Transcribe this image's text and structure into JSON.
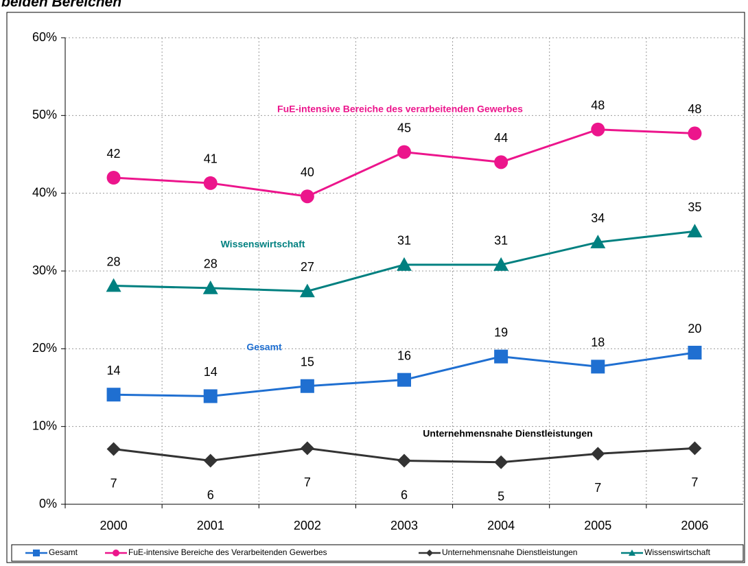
{
  "chart_data": {
    "type": "line",
    "title": "beiden Bereichen",
    "categories": [
      "2000",
      "2001",
      "2002",
      "2003",
      "2004",
      "2005",
      "2006"
    ],
    "series": [
      {
        "name": "Gesamt",
        "color": "#1f6fd1",
        "marker": "square",
        "values": [
          14.1,
          13.9,
          15.2,
          16.0,
          19.0,
          17.7,
          19.5
        ],
        "value_labels": [
          "14",
          "14",
          "15",
          "16",
          "19",
          "18",
          "20"
        ]
      },
      {
        "name": "FuE-intensive Bereiche des Verarbeitenden Gewerbes",
        "color": "#ec158c",
        "marker": "circle",
        "values": [
          42.0,
          41.3,
          39.6,
          45.3,
          44.0,
          48.2,
          47.7
        ],
        "value_labels": [
          "42",
          "41",
          "40",
          "45",
          "44",
          "48",
          "48"
        ]
      },
      {
        "name": "Unternehmensnahe Dienstleistungen",
        "color": "#333333",
        "marker": "diamond",
        "values": [
          7.1,
          5.6,
          7.2,
          5.6,
          5.4,
          6.5,
          7.2
        ],
        "value_labels": [
          "7",
          "6",
          "7",
          "6",
          "5",
          "7",
          "7"
        ]
      },
      {
        "name": "Wissenswirtschaft",
        "color": "#008080",
        "marker": "triangle",
        "values": [
          28.1,
          27.8,
          27.4,
          30.8,
          30.8,
          33.7,
          35.1
        ],
        "value_labels": [
          "28",
          "28",
          "27",
          "31",
          "31",
          "34",
          "35"
        ]
      }
    ],
    "annotations": [
      {
        "text": "FuE-intensive Bereiche des verarbeitenden Gewerbes",
        "color": "#ec158c"
      },
      {
        "text": "Wissenswirtschaft",
        "color": "#008080"
      },
      {
        "text": "Gesamt",
        "color": "#1f6fd1"
      },
      {
        "text": "Unternehmensnahe Dienstleistungen",
        "color": "#000000"
      }
    ],
    "ylim": [
      0,
      60
    ],
    "yticks": [
      {
        "value": 0,
        "label": "0%"
      },
      {
        "value": 10,
        "label": "10%"
      },
      {
        "value": 20,
        "label": "20%"
      },
      {
        "value": 30,
        "label": "30%"
      },
      {
        "value": 40,
        "label": "40%"
      },
      {
        "value": 50,
        "label": "50%"
      },
      {
        "value": 60,
        "label": "60%"
      }
    ],
    "grid": true,
    "legend": "bottom"
  }
}
